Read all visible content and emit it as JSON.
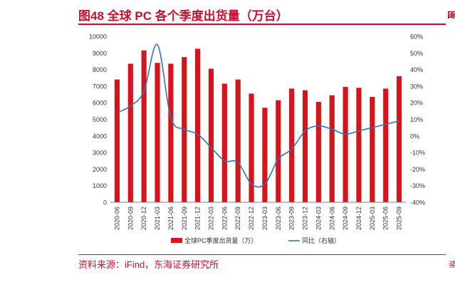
{
  "header": {
    "title": "图48  全球 PC 各个季度出货量（万台）"
  },
  "footer": {
    "source": "资料来源：iFind，东海证券研究所"
  },
  "edge": {
    "top_fragment": "图",
    "bottom_fragment": "资"
  },
  "colors": {
    "bar": "#d7141c",
    "line": "#2e74b5",
    "title": "#c8102e"
  },
  "chart_data": {
    "type": "bar",
    "categories": [
      "2020-06",
      "2020-09",
      "2020-12",
      "2021-03",
      "2021-06",
      "2021-09",
      "2021-12",
      "2022-03",
      "2022-06",
      "2022-09",
      "2022-12",
      "2023-03",
      "2023-06",
      "2023-09",
      "2023-12",
      "2024-03",
      "2024-06",
      "2024-09",
      "2024-12",
      "2025-03",
      "2025-06",
      "2025-09"
    ],
    "series": [
      {
        "name": "全球PC季度出货量（万）",
        "type": "bar",
        "axis": "left",
        "values": [
          7400,
          8350,
          9150,
          8400,
          8350,
          8750,
          9250,
          8050,
          7150,
          7400,
          6550,
          5700,
          6150,
          6850,
          6750,
          6050,
          6450,
          6950,
          6900,
          6350,
          6850,
          7600
        ]
      },
      {
        "name": "同比（右轴）",
        "type": "line",
        "axis": "right",
        "values": [
          14,
          18,
          27,
          55,
          11,
          4,
          1,
          -7,
          -15,
          -16,
          -29,
          -29,
          -14,
          -8,
          3,
          6,
          4,
          1,
          3,
          5,
          7,
          9
        ]
      }
    ],
    "y_left": {
      "min": 0,
      "max": 10000,
      "ticks": [
        "0",
        "1000",
        "2000",
        "3000",
        "4000",
        "5000",
        "6000",
        "7000",
        "8000",
        "9000",
        "10000"
      ]
    },
    "y_right": {
      "min": -40,
      "max": 60,
      "ticks": [
        "-40%",
        "-30%",
        "-20%",
        "-10%",
        "0%",
        "10%",
        "20%",
        "30%",
        "40%",
        "50%",
        "60%"
      ]
    },
    "legend_position": "bottom-center",
    "grid": false
  }
}
